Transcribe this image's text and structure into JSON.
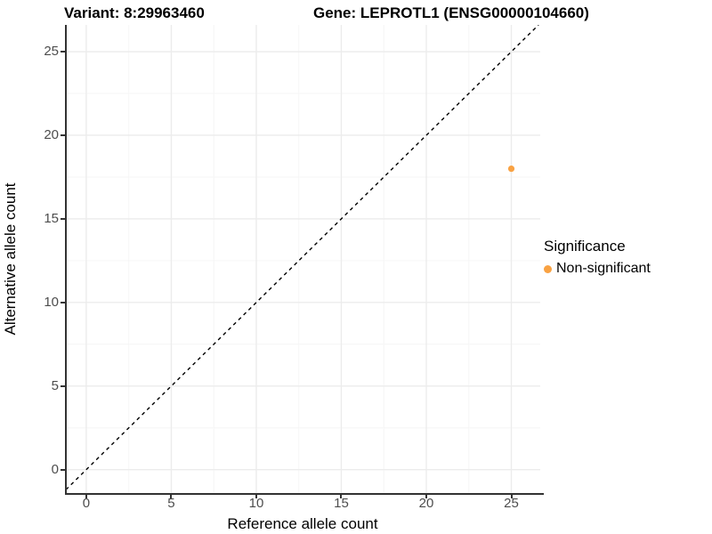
{
  "titles": {
    "variant": "Variant: 8:29963460",
    "gene": "Gene: LEPROTL1 (ENSG00000104660)"
  },
  "chart_data": {
    "type": "scatter",
    "xlabel": "Reference allele count",
    "ylabel": "Alternative allele count",
    "xlim": [
      -1.2,
      26.7
    ],
    "ylim": [
      -1.4,
      26.6
    ],
    "xticks": [
      0,
      5,
      10,
      15,
      20,
      25
    ],
    "yticks": [
      0,
      5,
      10,
      15,
      20,
      25
    ],
    "grid": true,
    "series": [
      {
        "name": "Non-significant",
        "color": "#F9A243",
        "points": [
          {
            "x": 25,
            "y": 18
          }
        ]
      }
    ],
    "reference_line": {
      "type": "identity y=x",
      "style": "dashed",
      "color": "#000000"
    },
    "legend": {
      "position": "right",
      "title": "Significance",
      "entries": [
        {
          "label": "Non-significant",
          "color": "#F9A243"
        }
      ]
    },
    "colors": {
      "axis": "#333333",
      "tick_text": "#4D4D4D",
      "grid_major": "#ECECEC",
      "grid_minor": "#F6F6F6"
    }
  }
}
